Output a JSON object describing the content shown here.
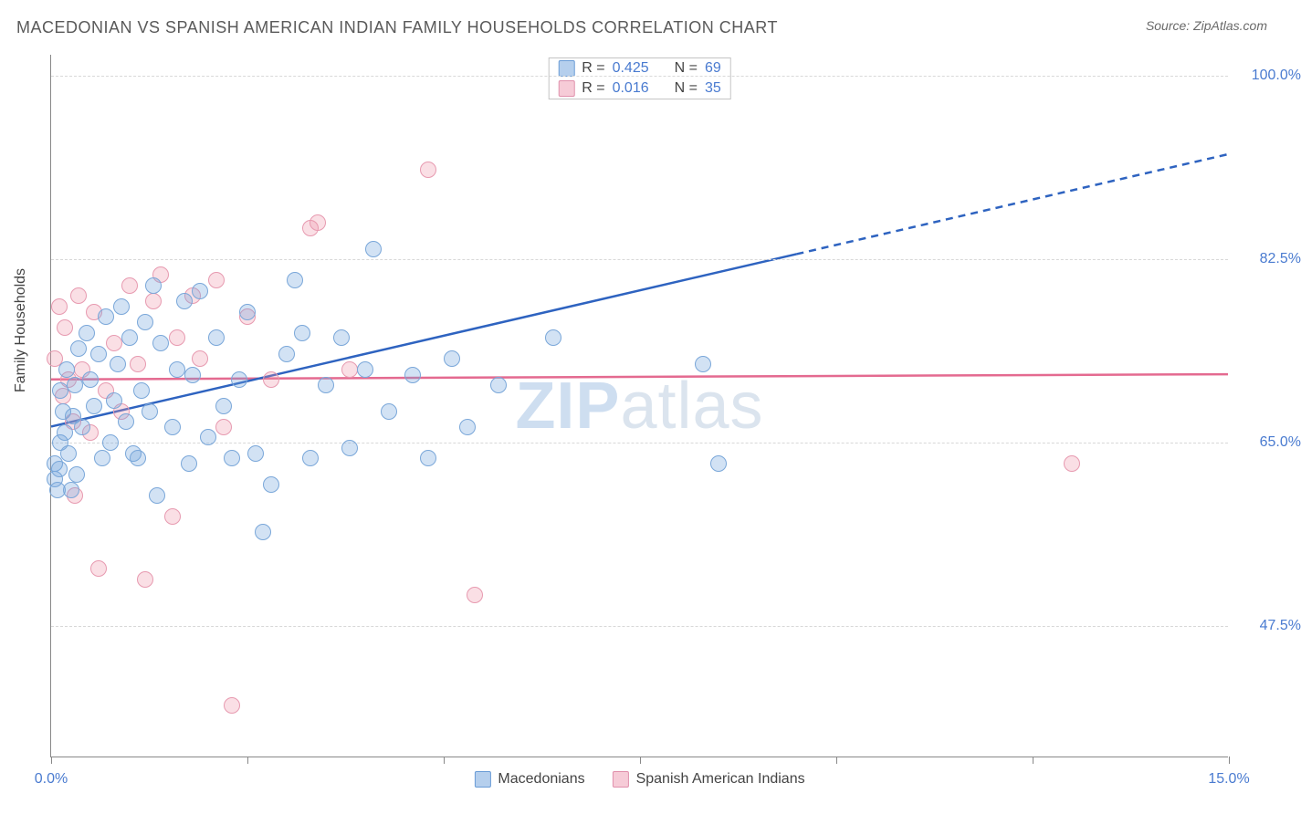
{
  "header": {
    "title": "MACEDONIAN VS SPANISH AMERICAN INDIAN FAMILY HOUSEHOLDS CORRELATION CHART",
    "source_prefix": "Source: ",
    "source_name": "ZipAtlas.com"
  },
  "chart": {
    "type": "scatter",
    "ylabel": "Family Households",
    "x_axis": {
      "min": 0.0,
      "max": 15.0,
      "tick_step": 2.5,
      "labels": {
        "min": "0.0%",
        "max": "15.0%"
      }
    },
    "y_axis": {
      "min": 35.0,
      "max": 102.0,
      "gridlines": [
        47.5,
        65.0,
        82.5,
        100.0
      ],
      "labels": [
        "47.5%",
        "65.0%",
        "82.5%",
        "100.0%"
      ]
    },
    "background_color": "#ffffff",
    "grid_color": "#d8d8d8",
    "axis_color": "#888888",
    "text_color": "#444444",
    "tick_label_color": "#4a7bd0",
    "title_fontsize": 18,
    "label_fontsize": 16,
    "tick_fontsize": 16,
    "marker_size": 18,
    "series": {
      "blue": {
        "name": "Macedonians",
        "fill": "rgba(114,164,222,0.32)",
        "stroke": "#7aa7d9",
        "trend_color": "#2e63c0",
        "trend_width": 2.5,
        "trend_dash_from_x": 9.5,
        "R": 0.425,
        "N": 69,
        "trend": {
          "y_at_x0": 66.5,
          "y_at_x15": 92.5
        },
        "points": [
          [
            0.05,
            61.5
          ],
          [
            0.05,
            63.0
          ],
          [
            0.08,
            60.5
          ],
          [
            0.1,
            62.5
          ],
          [
            0.12,
            65.0
          ],
          [
            0.12,
            70.0
          ],
          [
            0.15,
            68.0
          ],
          [
            0.18,
            66.0
          ],
          [
            0.2,
            72.0
          ],
          [
            0.22,
            64.0
          ],
          [
            0.25,
            60.5
          ],
          [
            0.28,
            67.5
          ],
          [
            0.3,
            70.5
          ],
          [
            0.32,
            62.0
          ],
          [
            0.35,
            74.0
          ],
          [
            0.4,
            66.5
          ],
          [
            0.45,
            75.5
          ],
          [
            0.5,
            71.0
          ],
          [
            0.55,
            68.5
          ],
          [
            0.6,
            73.5
          ],
          [
            0.65,
            63.5
          ],
          [
            0.7,
            77.0
          ],
          [
            0.75,
            65.0
          ],
          [
            0.8,
            69.0
          ],
          [
            0.85,
            72.5
          ],
          [
            0.9,
            78.0
          ],
          [
            0.95,
            67.0
          ],
          [
            1.0,
            75.0
          ],
          [
            1.05,
            64.0
          ],
          [
            1.1,
            63.5
          ],
          [
            1.15,
            70.0
          ],
          [
            1.2,
            76.5
          ],
          [
            1.25,
            68.0
          ],
          [
            1.3,
            80.0
          ],
          [
            1.35,
            60.0
          ],
          [
            1.4,
            74.5
          ],
          [
            1.55,
            66.5
          ],
          [
            1.6,
            72.0
          ],
          [
            1.7,
            78.5
          ],
          [
            1.75,
            63.0
          ],
          [
            1.8,
            71.5
          ],
          [
            1.9,
            79.5
          ],
          [
            2.0,
            65.5
          ],
          [
            2.1,
            75.0
          ],
          [
            2.2,
            68.5
          ],
          [
            2.3,
            63.5
          ],
          [
            2.4,
            71.0
          ],
          [
            2.5,
            77.5
          ],
          [
            2.6,
            64.0
          ],
          [
            2.7,
            56.5
          ],
          [
            2.8,
            61.0
          ],
          [
            3.0,
            73.5
          ],
          [
            3.1,
            80.5
          ],
          [
            3.2,
            75.5
          ],
          [
            3.3,
            63.5
          ],
          [
            3.5,
            70.5
          ],
          [
            3.7,
            75.0
          ],
          [
            3.8,
            64.5
          ],
          [
            4.0,
            72.0
          ],
          [
            4.1,
            83.5
          ],
          [
            4.3,
            68.0
          ],
          [
            4.6,
            71.5
          ],
          [
            4.8,
            63.5
          ],
          [
            5.1,
            73.0
          ],
          [
            5.3,
            66.5
          ],
          [
            5.7,
            70.5
          ],
          [
            6.4,
            75.0
          ],
          [
            8.3,
            72.5
          ],
          [
            8.5,
            63.0
          ]
        ]
      },
      "pink": {
        "name": "Spanish American Indians",
        "fill": "rgba(240,150,170,0.30)",
        "stroke": "#e79ab0",
        "trend_color": "#e46a90",
        "trend_width": 2.5,
        "R": 0.016,
        "N": 35,
        "trend": {
          "y_at_x0": 71.0,
          "y_at_x15": 71.5
        },
        "points": [
          [
            0.05,
            73.0
          ],
          [
            0.1,
            78.0
          ],
          [
            0.15,
            69.5
          ],
          [
            0.18,
            76.0
          ],
          [
            0.22,
            71.0
          ],
          [
            0.28,
            67.0
          ],
          [
            0.3,
            60.0
          ],
          [
            0.35,
            79.0
          ],
          [
            0.4,
            72.0
          ],
          [
            0.5,
            66.0
          ],
          [
            0.55,
            77.5
          ],
          [
            0.6,
            53.0
          ],
          [
            0.7,
            70.0
          ],
          [
            0.8,
            74.5
          ],
          [
            0.9,
            68.0
          ],
          [
            1.0,
            80.0
          ],
          [
            1.1,
            72.5
          ],
          [
            1.2,
            52.0
          ],
          [
            1.3,
            78.5
          ],
          [
            1.4,
            81.0
          ],
          [
            1.55,
            58.0
          ],
          [
            1.6,
            75.0
          ],
          [
            1.8,
            79.0
          ],
          [
            1.9,
            73.0
          ],
          [
            2.1,
            80.5
          ],
          [
            2.2,
            66.5
          ],
          [
            2.3,
            40.0
          ],
          [
            2.5,
            77.0
          ],
          [
            2.8,
            71.0
          ],
          [
            3.3,
            85.5
          ],
          [
            3.4,
            86.0
          ],
          [
            3.8,
            72.0
          ],
          [
            4.8,
            91.0
          ],
          [
            5.4,
            50.5
          ],
          [
            13.0,
            63.0
          ]
        ]
      }
    },
    "legend_top": {
      "r_label": "R =",
      "n_label": "N =",
      "rows": [
        {
          "swatch": "blue",
          "R": "0.425",
          "N": "69"
        },
        {
          "swatch": "pink",
          "R": "0.016",
          "N": "35"
        }
      ]
    },
    "legend_bottom": [
      {
        "swatch": "blue",
        "label": "Macedonians"
      },
      {
        "swatch": "pink",
        "label": "Spanish American Indians"
      }
    ],
    "watermark": {
      "bold": "ZIP",
      "rest": "atlas"
    }
  }
}
